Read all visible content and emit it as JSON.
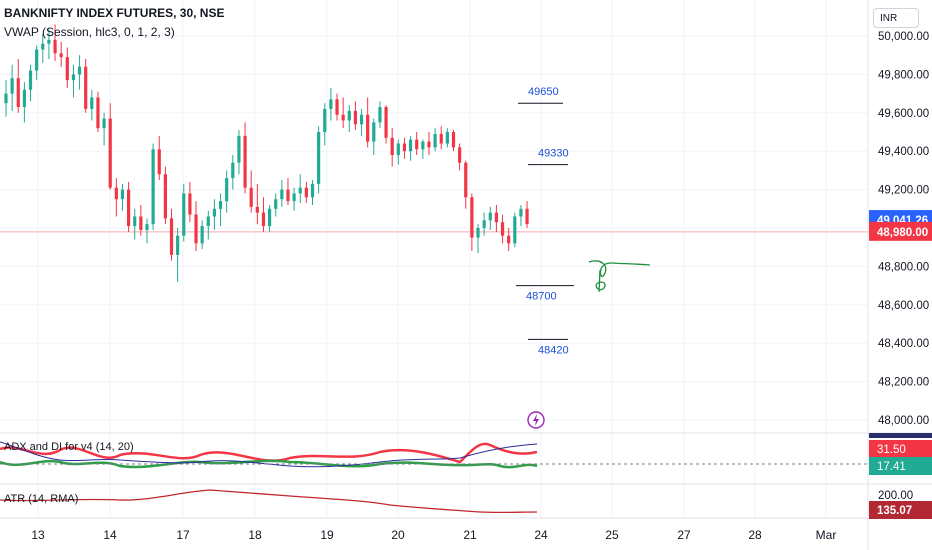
{
  "header": {
    "title": "BANKNIFTY INDEX FUTURES, 30, NSE",
    "indicator": "VWAP (Session, hlc3, 0, 1, 2, 3)"
  },
  "currency": "INR",
  "colors": {
    "up": "#22ab94",
    "down": "#f23645",
    "vwap": "#2b2b9c",
    "annot_blue": "#1b4fd8",
    "annot_green": "#1f8f3a",
    "last_price": "#f23645",
    "current_price": "#2962ff"
  },
  "chart_data": [
    {
      "type": "candlestick",
      "panel": "price",
      "y_ticks": [
        "50,000.00",
        "49,800.00",
        "49,600.00",
        "49,400.00",
        "49,200.00",
        "48,800.00",
        "48,600.00",
        "48,400.00",
        "48,200.00",
        "48,000.00"
      ],
      "ylim": [
        47990,
        50110
      ],
      "x_ticks": [
        "13",
        "14",
        "17",
        "18",
        "19",
        "20",
        "21",
        "24",
        "25",
        "27",
        "28",
        "Mar"
      ],
      "price_badges": [
        {
          "label": "49,041.26",
          "value": 49041.26,
          "kind": "current"
        },
        {
          "label": "48,980.00",
          "value": 48980.0,
          "kind": "last"
        }
      ],
      "levels": [
        {
          "label": "49650",
          "value": 49650
        },
        {
          "label": "49330",
          "value": 49330
        },
        {
          "label": "48700",
          "value": 48700
        },
        {
          "label": "48420",
          "value": 48420
        }
      ],
      "candles": [
        [
          49650,
          49770,
          49580,
          49700
        ],
        [
          49700,
          49850,
          49610,
          49780
        ],
        [
          49780,
          49880,
          49600,
          49630
        ],
        [
          49630,
          49760,
          49550,
          49720
        ],
        [
          49720,
          49850,
          49660,
          49820
        ],
        [
          49820,
          49950,
          49770,
          49930
        ],
        [
          49930,
          50010,
          49860,
          49960
        ],
        [
          49960,
          50040,
          49880,
          49980
        ],
        [
          49980,
          50060,
          49870,
          49910
        ],
        [
          49910,
          49970,
          49840,
          49890
        ],
        [
          49890,
          49940,
          49730,
          49770
        ],
        [
          49770,
          49850,
          49680,
          49800
        ],
        [
          49800,
          49900,
          49720,
          49840
        ],
        [
          49840,
          49880,
          49600,
          49620
        ],
        [
          49620,
          49720,
          49560,
          49680
        ],
        [
          49680,
          49710,
          49500,
          49520
        ],
        [
          49520,
          49600,
          49430,
          49570
        ],
        [
          49570,
          49650,
          49200,
          49210
        ],
        [
          49210,
          49260,
          49060,
          49150
        ],
        [
          49150,
          49230,
          49090,
          49200
        ],
        [
          49200,
          49240,
          48980,
          49010
        ],
        [
          49010,
          49100,
          48940,
          49060
        ],
        [
          49060,
          49120,
          48960,
          48990
        ],
        [
          48990,
          49050,
          48920,
          49020
        ],
        [
          49020,
          49440,
          48990,
          49410
        ],
        [
          49410,
          49480,
          49250,
          49280
        ],
        [
          49280,
          49320,
          49020,
          49050
        ],
        [
          49050,
          49100,
          48830,
          48860
        ],
        [
          48860,
          49000,
          48720,
          48960
        ],
        [
          48960,
          49230,
          48930,
          49180
        ],
        [
          49180,
          49240,
          49030,
          49070
        ],
        [
          49070,
          49140,
          48880,
          48920
        ],
        [
          48920,
          49040,
          48890,
          49010
        ],
        [
          49010,
          49090,
          48940,
          49060
        ],
        [
          49060,
          49150,
          48990,
          49100
        ],
        [
          49100,
          49180,
          49010,
          49140
        ],
        [
          49140,
          49300,
          49080,
          49260
        ],
        [
          49260,
          49380,
          49200,
          49340
        ],
        [
          49340,
          49510,
          49280,
          49480
        ],
        [
          49480,
          49550,
          49180,
          49210
        ],
        [
          49210,
          49300,
          49080,
          49110
        ],
        [
          49110,
          49230,
          49020,
          49080
        ],
        [
          49080,
          49160,
          48980,
          49010
        ],
        [
          49010,
          49120,
          48980,
          49100
        ],
        [
          49100,
          49180,
          49060,
          49150
        ],
        [
          49150,
          49250,
          49110,
          49200
        ],
        [
          49200,
          49260,
          49120,
          49140
        ],
        [
          49140,
          49210,
          49090,
          49180
        ],
        [
          49180,
          49280,
          49130,
          49210
        ],
        [
          49210,
          49240,
          49130,
          49160
        ],
        [
          49160,
          49250,
          49120,
          49230
        ],
        [
          49230,
          49530,
          49180,
          49500
        ],
        [
          49500,
          49650,
          49430,
          49620
        ],
        [
          49620,
          49730,
          49560,
          49670
        ],
        [
          49670,
          49700,
          49560,
          49590
        ],
        [
          49590,
          49680,
          49520,
          49560
        ],
        [
          49560,
          49640,
          49500,
          49610
        ],
        [
          49610,
          49660,
          49510,
          49540
        ],
        [
          49540,
          49620,
          49480,
          49590
        ],
        [
          49590,
          49680,
          49420,
          49450
        ],
        [
          49450,
          49570,
          49380,
          49550
        ],
        [
          49550,
          49660,
          49520,
          49630
        ],
        [
          49630,
          49640,
          49440,
          49470
        ],
        [
          49470,
          49520,
          49320,
          49380
        ],
        [
          49380,
          49460,
          49330,
          49440
        ],
        [
          49440,
          49470,
          49360,
          49400
        ],
        [
          49400,
          49480,
          49350,
          49460
        ],
        [
          49460,
          49500,
          49380,
          49410
        ],
        [
          49410,
          49460,
          49360,
          49450
        ],
        [
          49450,
          49500,
          49380,
          49420
        ],
        [
          49420,
          49520,
          49400,
          49490
        ],
        [
          49490,
          49530,
          49410,
          49440
        ],
        [
          49440,
          49520,
          49420,
          49500
        ],
        [
          49500,
          49510,
          49400,
          49420
        ],
        [
          49420,
          49440,
          49300,
          49340
        ],
        [
          49340,
          49350,
          49100,
          49160
        ],
        [
          49160,
          49180,
          48880,
          48950
        ],
        [
          48950,
          49020,
          48870,
          49000
        ],
        [
          49000,
          49080,
          48960,
          49040
        ],
        [
          49040,
          49110,
          48990,
          49080
        ],
        [
          49080,
          49120,
          48980,
          49030
        ],
        [
          49030,
          49070,
          48920,
          48960
        ],
        [
          48960,
          49000,
          48880,
          48920
        ],
        [
          48920,
          49080,
          48900,
          49060
        ],
        [
          49060,
          49120,
          49010,
          49100
        ],
        [
          49100,
          49140,
          49000,
          49020
        ]
      ]
    },
    {
      "type": "line",
      "panel": "indicator",
      "name": "ADX and DI for v4 (14, 20)",
      "value_badges": [
        {
          "label": "31.50",
          "color": "#f23645"
        },
        {
          "label": "17.41",
          "color": "#22ab94"
        }
      ]
    },
    {
      "type": "line",
      "panel": "indicator",
      "name": "ATR (14, RMA)",
      "y_ticks": [
        "200.00"
      ],
      "value_badges": [
        {
          "label": "135.07",
          "color": "#b22833"
        }
      ]
    }
  ]
}
